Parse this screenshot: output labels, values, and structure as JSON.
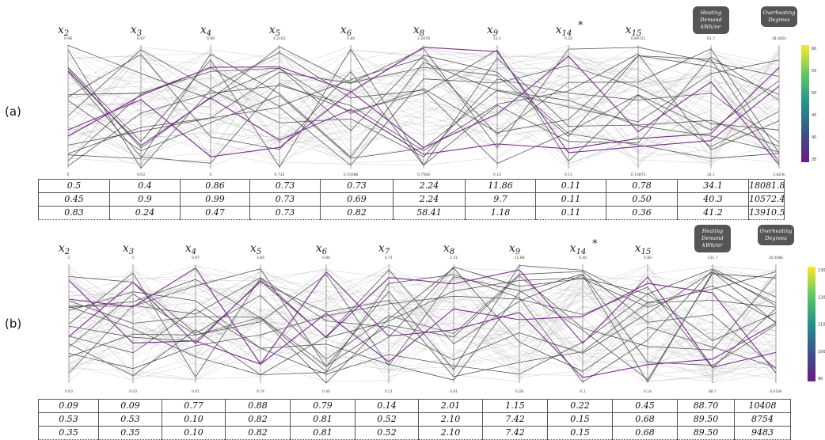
{
  "chart_data": [
    {
      "type": "parallel_coordinates",
      "panel_label": "(a)",
      "axes": [
        {
          "label": "x",
          "sub": "2",
          "top_tick": "0.98",
          "bottom_tick": "0"
        },
        {
          "label": "x",
          "sub": "3",
          "top_tick": "0.97",
          "bottom_tick": "0.03"
        },
        {
          "label": "x",
          "sub": "4",
          "top_tick": "0.99",
          "bottom_tick": "0"
        },
        {
          "label": "x",
          "sub": "5",
          "top_tick": "4.2161",
          "bottom_tick": "0.732"
        },
        {
          "label": "x",
          "sub": "6",
          "top_tick": "0.84",
          "bottom_tick": "0.15088"
        },
        {
          "label": "x",
          "sub": "8",
          "top_tick": "2.2078",
          "bottom_tick": "0.7568"
        },
        {
          "label": "x",
          "sub": "9",
          "top_tick": "12.1",
          "bottom_tick": "0.14"
        },
        {
          "label": "x",
          "sub": "14",
          "star": "*",
          "top_tick": "0.24",
          "bottom_tick": "0.11"
        },
        {
          "label": "x",
          "sub": "15",
          "top_tick": "0.89721",
          "bottom_tick": "0.13873"
        }
      ],
      "outputs": [
        {
          "label_lines": [
            "Heating",
            "Demand",
            "kWh/m²"
          ],
          "top_tick": "61.7",
          "bottom_tick": "34.1"
        },
        {
          "label_lines": [
            "Overheating",
            "Degrees"
          ],
          "top_tick": "18.082k",
          "bottom_tick": "2.824k"
        }
      ],
      "colorbar_ticks": [
        "60",
        "55",
        "50",
        "45",
        "40",
        "35"
      ],
      "highlight_color": "#7b2c8f",
      "table": [
        [
          "0.5",
          "0.4",
          "0.86",
          "0.73",
          "0.73",
          "2.24",
          "11.86",
          "0.11",
          "0.78",
          "34.1",
          "18081.8"
        ],
        [
          "0.45",
          "0.9",
          "0.99",
          "0.73",
          "0.69",
          "2.24",
          "9.7",
          "0.11",
          "0.50",
          "40.3",
          "10572.4"
        ],
        [
          "0.83",
          "0.24",
          "0.47",
          "0.73",
          "0.82",
          "58.41",
          "1.18",
          "0.11",
          "0.36",
          "41.2",
          "13910.5"
        ]
      ]
    },
    {
      "type": "parallel_coordinates",
      "panel_label": "(b)",
      "axes": [
        {
          "label": "x",
          "sub": "2",
          "top_tick": "1",
          "bottom_tick": "0.03"
        },
        {
          "label": "x",
          "sub": "3",
          "top_tick": "1",
          "bottom_tick": "0.03"
        },
        {
          "label": "x",
          "sub": "4",
          "top_tick": "0.97",
          "bottom_tick": "0.01"
        },
        {
          "label": "x",
          "sub": "5",
          "top_tick": "3.84",
          "bottom_tick": "0.74"
        },
        {
          "label": "x",
          "sub": "6",
          "top_tick": "0.84",
          "bottom_tick": "0.44"
        },
        {
          "label": "x",
          "sub": "7",
          "top_tick": "0.71",
          "bottom_tick": "0.11"
        },
        {
          "label": "x",
          "sub": "8",
          "top_tick": "2.31",
          "bottom_tick": "0.81"
        },
        {
          "label": "x",
          "sub": "9",
          "top_tick": "11.88",
          "bottom_tick": "0.28"
        },
        {
          "label": "x",
          "sub": "14",
          "star": "*",
          "top_tick": "0.40",
          "bottom_tick": "0.1"
        },
        {
          "label": "x",
          "sub": "15",
          "top_tick": "0.80",
          "bottom_tick": "0.14"
        }
      ],
      "outputs": [
        {
          "label_lines": [
            "Heating",
            "Demand",
            "kWh/m²"
          ],
          "top_tick": "131.7",
          "bottom_tick": "88.7"
        },
        {
          "label_lines": [
            "Overheating",
            "Degrees"
          ],
          "top_tick": "10.408k",
          "bottom_tick": "0.410k"
        }
      ],
      "colorbar_ticks": [
        "130",
        "120",
        "110",
        "100",
        "90"
      ],
      "highlight_color": "#7b2c8f",
      "table": [
        [
          "0.09",
          "0.09",
          "0.77",
          "0.88",
          "0.79",
          "0.14",
          "2.01",
          "1.15",
          "0.22",
          "0.45",
          "88.70",
          "10408"
        ],
        [
          "0.53",
          "0.53",
          "0.10",
          "0.82",
          "0.81",
          "0.52",
          "2.10",
          "7.42",
          "0.15",
          "0.68",
          "89.50",
          "8754"
        ],
        [
          "0.35",
          "0.35",
          "0.10",
          "0.82",
          "0.81",
          "0.52",
          "2.10",
          "7.42",
          "0.15",
          "0.68",
          "89.50",
          "9483"
        ]
      ]
    }
  ]
}
